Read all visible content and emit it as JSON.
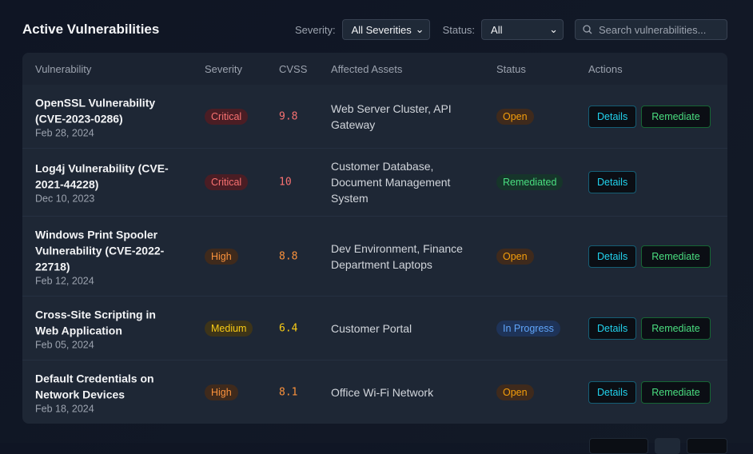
{
  "title": "Active Vulnerabilities",
  "filters": {
    "severity_label": "Severity:",
    "severity_value": "All Severities",
    "status_label": "Status:",
    "status_value": "All"
  },
  "search": {
    "placeholder": "Search vulnerabilities..."
  },
  "columns": [
    "Vulnerability",
    "Severity",
    "CVSS",
    "Affected Assets",
    "Status",
    "Actions"
  ],
  "actions": {
    "details": "Details",
    "remediate": "Remediate"
  },
  "rows": [
    {
      "name": "OpenSSL Vulnerability (CVE-2023-0286)",
      "date": "Feb 28, 2024",
      "severity": "Critical",
      "cvss": "9.8",
      "assets": "Web Server Cluster, API Gateway",
      "status": "Open",
      "remediate": true
    },
    {
      "name": "Log4j Vulnerability (CVE-2021-44228)",
      "date": "Dec 10, 2023",
      "severity": "Critical",
      "cvss": "10",
      "assets": "Customer Database, Document Management System",
      "status": "Remediated",
      "remediate": false
    },
    {
      "name": "Windows Print Spooler Vulnerability (CVE-2022-22718)",
      "date": "Feb 12, 2024",
      "severity": "High",
      "cvss": "8.8",
      "assets": "Dev Environment, Finance Department Laptops",
      "status": "Open",
      "remediate": true
    },
    {
      "name": "Cross-Site Scripting in Web Application",
      "date": "Feb 05, 2024",
      "severity": "Medium",
      "cvss": "6.4",
      "assets": "Customer Portal",
      "status": "In Progress",
      "remediate": true
    },
    {
      "name": "Default Credentials on Network Devices",
      "date": "Feb 18, 2024",
      "severity": "High",
      "cvss": "8.1",
      "assets": "Office Wi-Fi Network",
      "status": "Open",
      "remediate": true
    }
  ],
  "colors": {
    "critical": "#f87171",
    "high": "#fb923c",
    "medium": "#facc15",
    "open": "#f59e0b",
    "remediated": "#4ade80",
    "in_progress": "#60a5fa",
    "accent": "#22d3ee"
  }
}
